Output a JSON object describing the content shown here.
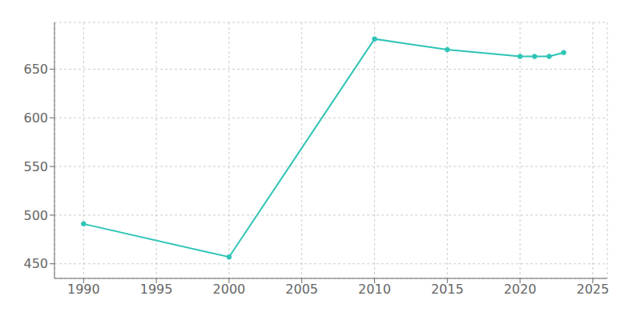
{
  "chart_data": {
    "type": "line",
    "x": [
      1990,
      2000,
      2010,
      2015,
      2020,
      2021,
      2022,
      2023
    ],
    "values": [
      491,
      457,
      681,
      670,
      663,
      663,
      663,
      667
    ],
    "color": "#2ec4b6",
    "marker": "circle",
    "xlim": [
      1988,
      2026
    ],
    "ylim": [
      435,
      698
    ],
    "xticks": [
      1990,
      1995,
      2000,
      2005,
      2010,
      2015,
      2020,
      2025
    ],
    "yticks": [
      450,
      500,
      550,
      600,
      650
    ],
    "grid": true
  }
}
